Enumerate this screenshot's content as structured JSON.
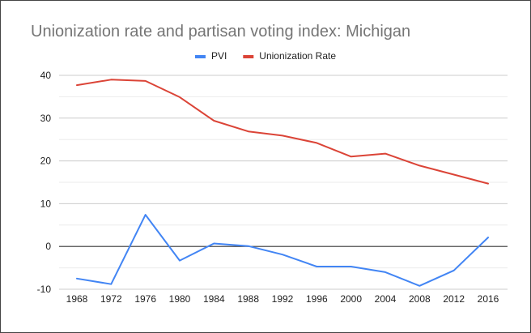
{
  "chart_data": {
    "type": "line",
    "title": "Unionization rate and partisan voting index: Michigan",
    "xlabel": "",
    "ylabel": "",
    "categories": [
      "1968",
      "1972",
      "1976",
      "1980",
      "1984",
      "1988",
      "1992",
      "1996",
      "2000",
      "2004",
      "2008",
      "2012",
      "2016"
    ],
    "series": [
      {
        "name": "PVI",
        "color": "#4285f4",
        "values": [
          -7.5,
          -8.8,
          7.4,
          -3.3,
          0.7,
          0.1,
          -1.9,
          -4.7,
          -4.7,
          -6.0,
          -9.2,
          -5.6,
          2.1
        ]
      },
      {
        "name": "Unionization Rate",
        "color": "#db4437",
        "values": [
          37.7,
          39.0,
          38.7,
          34.9,
          29.4,
          26.9,
          25.9,
          24.2,
          21.0,
          21.7,
          18.9,
          16.8,
          14.7
        ]
      }
    ],
    "ylim": [
      -10,
      40
    ],
    "yticks": [
      "-10",
      "0",
      "10",
      "20",
      "30",
      "40"
    ],
    "grid": true,
    "legend_position": "top"
  }
}
